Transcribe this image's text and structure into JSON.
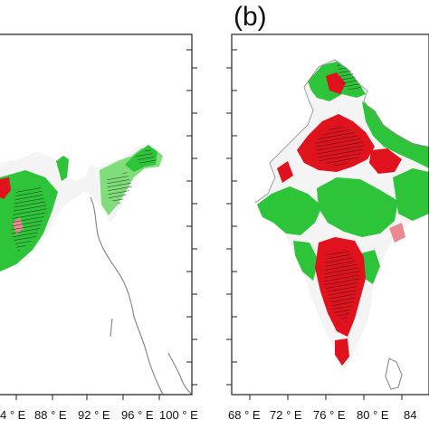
{
  "figure": {
    "panel_b_label": "(b)",
    "left_panel_xticks": [
      "4 ° E",
      "88 ° E",
      "92 ° E",
      "96 ° E",
      "100 ° E"
    ],
    "right_panel_xticks": [
      "68 ° E",
      "72 ° E",
      "76 ° E",
      "80 ° E",
      "84"
    ]
  },
  "colors": {
    "increase": "#e0121d",
    "decrease": "#2ec43a",
    "neutral": "#f4f4f4",
    "frame": "#222222",
    "coastline": "#8a8a8a"
  }
}
